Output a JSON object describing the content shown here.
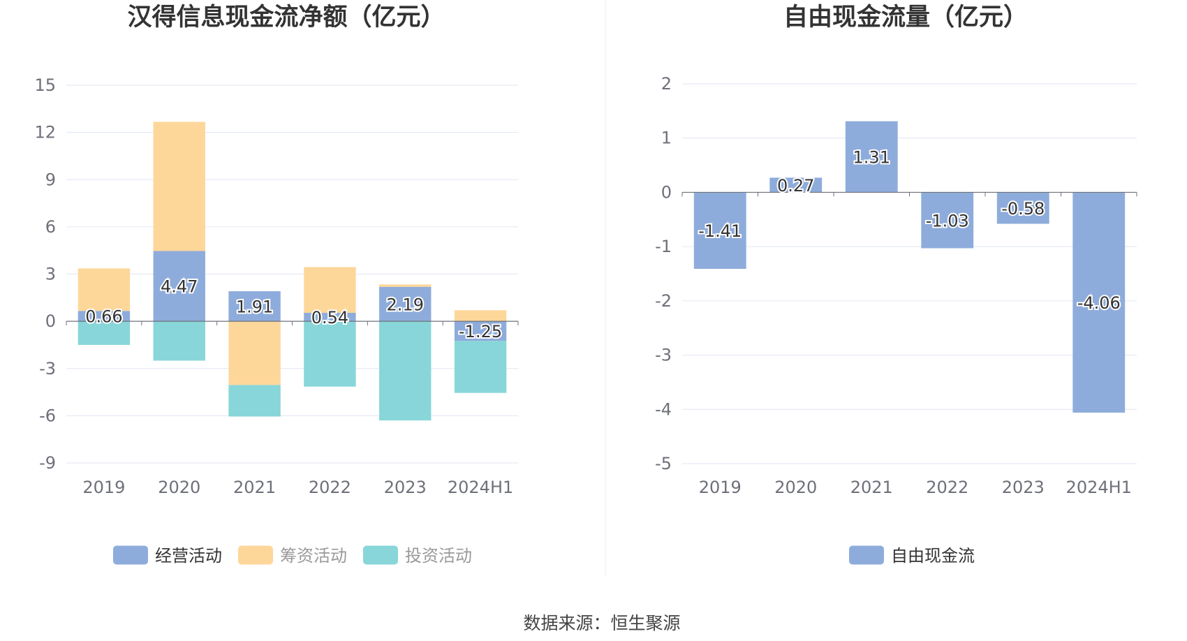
{
  "source": "数据来源：恒生聚源",
  "chart_data": [
    {
      "type": "bar",
      "stacked": true,
      "title": "汉得信息现金流净额（亿元）",
      "categories": [
        "2019",
        "2020",
        "2021",
        "2022",
        "2023",
        "2024H1"
      ],
      "ylim": [
        -9,
        15
      ],
      "yticks": [
        15,
        12,
        9,
        6,
        3,
        0,
        -3,
        -6,
        -9
      ],
      "grid": true,
      "legend_position": "bottom",
      "series": [
        {
          "name": "经营活动",
          "color": "#8eacdb",
          "values": [
            0.66,
            4.47,
            1.91,
            0.54,
            2.19,
            -1.25
          ],
          "labels": true
        },
        {
          "name": "筹资活动",
          "color": "#fdd79a",
          "values": [
            2.7,
            8.2,
            -4.05,
            2.9,
            0.15,
            0.7
          ],
          "labels": false
        },
        {
          "name": "投资活动",
          "color": "#88d6d9",
          "values": [
            -1.5,
            -2.5,
            -2.0,
            -4.15,
            -6.3,
            -3.3
          ],
          "labels": false
        }
      ]
    },
    {
      "type": "bar",
      "title": "自由现金流量（亿元）",
      "categories": [
        "2019",
        "2020",
        "2021",
        "2022",
        "2023",
        "2024H1"
      ],
      "ylim": [
        -5,
        2
      ],
      "yticks": [
        2,
        1,
        0,
        -1,
        -2,
        -3,
        -4,
        -5
      ],
      "grid": true,
      "legend_position": "bottom",
      "series": [
        {
          "name": "自由现金流",
          "color": "#8eacdb",
          "values": [
            -1.41,
            0.27,
            1.31,
            -1.03,
            -0.58,
            -4.06
          ],
          "labels": true
        }
      ]
    }
  ]
}
